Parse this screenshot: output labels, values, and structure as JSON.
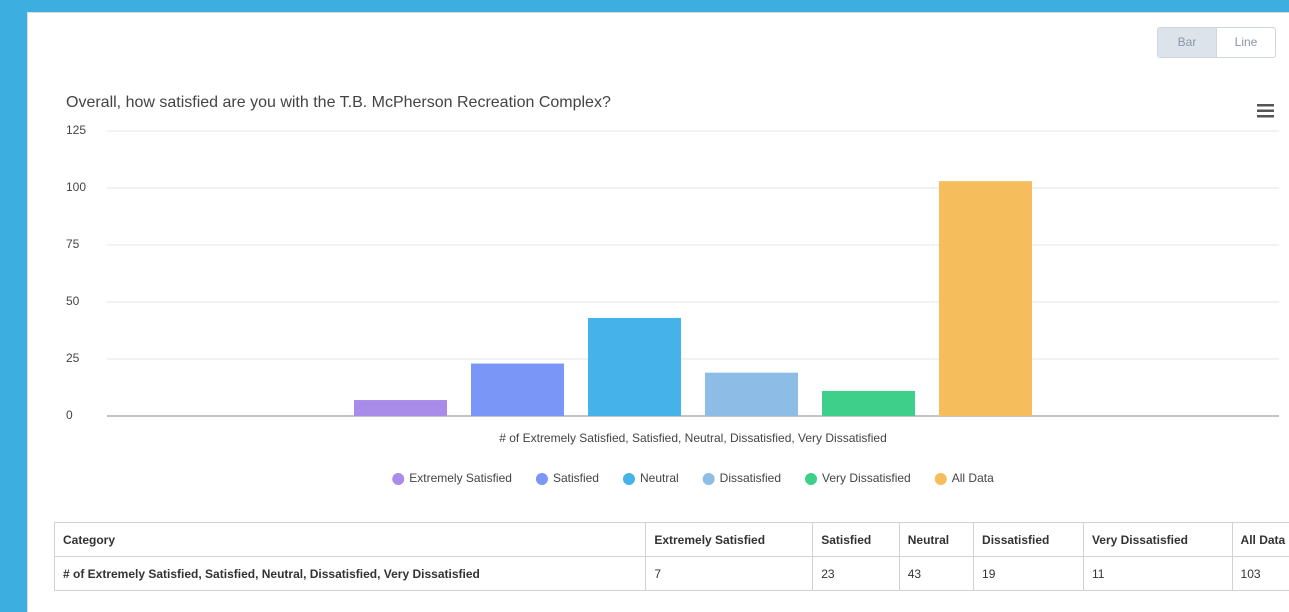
{
  "buttons": [
    "Bar",
    "Line"
  ],
  "chart_data": {
    "type": "bar",
    "title": "Overall, how satisfied are you with the T.B. McPherson Recreation Complex?",
    "categories": [
      "# of Extremely Satisfied, Satisfied, Neutral, Dissatisfied, Very Dissatisfied"
    ],
    "series": [
      {
        "name": "Extremely Satisfied",
        "color": "#a98bea",
        "values": [
          7
        ]
      },
      {
        "name": "Satisfied",
        "color": "#7a96f7",
        "values": [
          23
        ]
      },
      {
        "name": "Neutral",
        "color": "#45b2e9",
        "values": [
          43
        ]
      },
      {
        "name": "Dissatisfied",
        "color": "#8dbde6",
        "values": [
          19
        ]
      },
      {
        "name": "Very Dissatisfied",
        "color": "#3ecf8a",
        "values": [
          11
        ]
      },
      {
        "name": "All Data",
        "color": "#f5bd5b",
        "values": [
          103
        ]
      }
    ],
    "ylim": [
      0,
      125
    ],
    "yticks": [
      0,
      25,
      50,
      75,
      100,
      125
    ],
    "grid": true
  },
  "table": {
    "header": "Category"
  }
}
